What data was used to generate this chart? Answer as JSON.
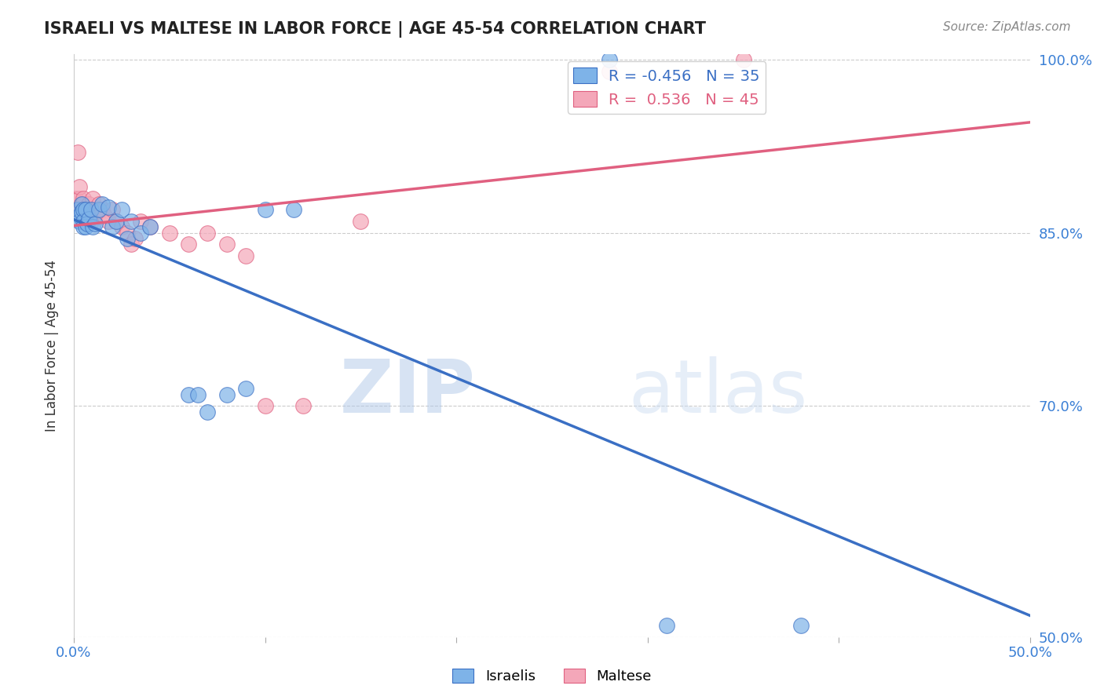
{
  "title": "ISRAELI VS MALTESE IN LABOR FORCE | AGE 45-54 CORRELATION CHART",
  "source_text": "Source: ZipAtlas.com",
  "xlabel": "",
  "ylabel": "In Labor Force | Age 45-54",
  "xlim": [
    0.0,
    0.5
  ],
  "ylim": [
    0.5,
    1.005
  ],
  "xticks": [
    0.0,
    0.1,
    0.2,
    0.3,
    0.4,
    0.5
  ],
  "xticklabels": [
    "0.0%",
    "",
    "",
    "",
    "",
    "50.0%"
  ],
  "yticks": [
    0.5,
    0.55,
    0.6,
    0.65,
    0.7,
    0.75,
    0.8,
    0.85,
    0.9,
    0.95,
    1.0
  ],
  "yticklabels": [
    "50.0%",
    "",
    "",
    "",
    "70.0%",
    "",
    "",
    "85.0%",
    "",
    "",
    "100.0%"
  ],
  "legend_R_israeli": "-0.456",
  "legend_N_israeli": "35",
  "legend_R_maltese": "0.536",
  "legend_N_maltese": "45",
  "israeli_color": "#7eb3e8",
  "maltese_color": "#f4a7b9",
  "israeli_line_color": "#3a6fc4",
  "maltese_line_color": "#e06080",
  "watermark_zip": "ZIP",
  "watermark_atlas": "atlas",
  "background_color": "#ffffff",
  "israeli_x": [
    0.002,
    0.003,
    0.003,
    0.004,
    0.004,
    0.005,
    0.005,
    0.005,
    0.006,
    0.006,
    0.007,
    0.008,
    0.009,
    0.01,
    0.011,
    0.013,
    0.015,
    0.018,
    0.02,
    0.022,
    0.025,
    0.028,
    0.03,
    0.035,
    0.04,
    0.06,
    0.065,
    0.07,
    0.08,
    0.09,
    0.1,
    0.115,
    0.28,
    0.31,
    0.38
  ],
  "israeli_y": [
    0.87,
    0.865,
    0.86,
    0.875,
    0.868,
    0.87,
    0.86,
    0.855,
    0.87,
    0.855,
    0.858,
    0.862,
    0.87,
    0.855,
    0.858,
    0.87,
    0.875,
    0.872,
    0.855,
    0.86,
    0.87,
    0.845,
    0.86,
    0.85,
    0.855,
    0.71,
    0.71,
    0.695,
    0.71,
    0.715,
    0.87,
    0.87,
    1.0,
    0.51,
    0.51
  ],
  "maltese_x": [
    0.001,
    0.002,
    0.002,
    0.003,
    0.003,
    0.003,
    0.004,
    0.004,
    0.005,
    0.005,
    0.005,
    0.005,
    0.006,
    0.006,
    0.007,
    0.007,
    0.008,
    0.008,
    0.009,
    0.01,
    0.01,
    0.011,
    0.012,
    0.013,
    0.015,
    0.016,
    0.018,
    0.02,
    0.022,
    0.025,
    0.028,
    0.03,
    0.032,
    0.035,
    0.04,
    0.05,
    0.06,
    0.07,
    0.08,
    0.09,
    0.1,
    0.12,
    0.15,
    0.28,
    0.35
  ],
  "maltese_y": [
    0.88,
    0.87,
    0.92,
    0.87,
    0.88,
    0.89,
    0.865,
    0.875,
    0.86,
    0.87,
    0.875,
    0.88,
    0.87,
    0.865,
    0.86,
    0.87,
    0.865,
    0.875,
    0.86,
    0.87,
    0.88,
    0.865,
    0.87,
    0.875,
    0.87,
    0.865,
    0.86,
    0.87,
    0.86,
    0.855,
    0.85,
    0.84,
    0.845,
    0.86,
    0.855,
    0.85,
    0.84,
    0.85,
    0.84,
    0.83,
    0.7,
    0.7,
    0.86,
    0.99,
    1.0
  ]
}
